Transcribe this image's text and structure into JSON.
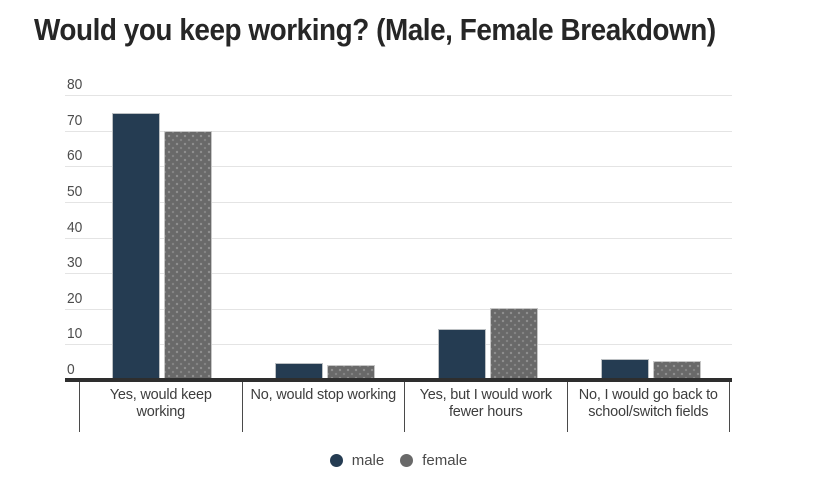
{
  "page": {
    "background": "#ffffff"
  },
  "chart_data": {
    "type": "bar",
    "title": "Would you keep working? (Male, Female Breakdown)",
    "categories": [
      "Yes, would keep working",
      "No, would stop working",
      "Yes, but I would work fewer hours",
      "No, I would go back to school/switch fields"
    ],
    "series": [
      {
        "name": "male",
        "color": "#253c52",
        "values": [
          75.0,
          4.8,
          14.2,
          5.9
        ]
      },
      {
        "name": "female",
        "color": "#696969",
        "values": [
          69.8,
          4.2,
          20.3,
          5.3
        ]
      }
    ],
    "xlabel": "",
    "ylabel": "",
    "ylim": [
      0,
      80
    ],
    "yticks": [
      0,
      10,
      20,
      30,
      40,
      50,
      60,
      70,
      80
    ],
    "grid": true,
    "legend": {
      "position": "bottom-center",
      "entries": [
        "male",
        "female"
      ]
    },
    "colors": {
      "grid": "#e4e4e4",
      "axis_line": "#2e2e2e",
      "title_text": "#262626",
      "tick_text": "#4c4c4c",
      "category_text": "#3d3d3d",
      "separator": "#4a4a4a",
      "legend_text": "#4a4a4a"
    }
  }
}
